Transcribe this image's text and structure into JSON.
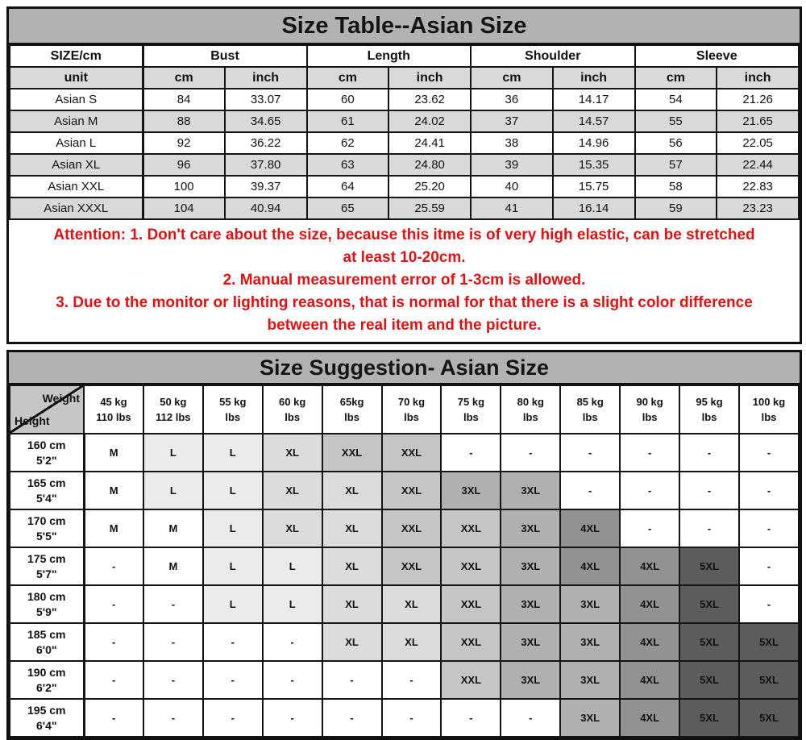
{
  "size_table": {
    "title": "Size Table--Asian Size",
    "first_col_header": "SIZE/cm",
    "unit_label": "unit",
    "groups": [
      "Bust",
      "Length",
      "Shoulder",
      "Sleeve"
    ],
    "unit_cells": [
      "cm",
      "inch",
      "cm",
      "inch",
      "cm",
      "inch",
      "cm",
      "inch"
    ],
    "rows": [
      {
        "size": "Asian S",
        "values": [
          "84",
          "33.07",
          "60",
          "23.62",
          "36",
          "14.17",
          "54",
          "21.26"
        ]
      },
      {
        "size": "Asian M",
        "values": [
          "88",
          "34.65",
          "61",
          "24.02",
          "37",
          "14.57",
          "55",
          "21.65"
        ]
      },
      {
        "size": "Asian L",
        "values": [
          "92",
          "36.22",
          "62",
          "24.41",
          "38",
          "14.96",
          "56",
          "22.05"
        ]
      },
      {
        "size": "Asian XL",
        "values": [
          "96",
          "37.80",
          "63",
          "24.80",
          "39",
          "15.35",
          "57",
          "22.44"
        ]
      },
      {
        "size": "Asian XXL",
        "values": [
          "100",
          "39.37",
          "64",
          "25.20",
          "40",
          "15.75",
          "58",
          "22.83"
        ]
      },
      {
        "size": "Asian XXXL",
        "values": [
          "104",
          "40.94",
          "65",
          "25.59",
          "41",
          "16.14",
          "59",
          "23.23"
        ]
      }
    ]
  },
  "attention": {
    "text_color": "#e01111",
    "lines": [
      "Attention:  1. Don't care about the size, because this itme is of very high elastic, can be stretched",
      "at least 10-20cm.",
      "2. Manual measurement error of 1-3cm is allowed.",
      "3. Due to the monitor or lighting reasons, that is normal for that there is a slight color difference",
      "between the real item and the picture."
    ]
  },
  "suggestion_table": {
    "title": "Size Suggestion- Asian Size",
    "corner_top": "Weight",
    "corner_bottom": "Height",
    "weights": [
      {
        "kg": "45 kg",
        "lbs": "110 lbs"
      },
      {
        "kg": "50 kg",
        "lbs": "112 lbs"
      },
      {
        "kg": "55 kg",
        "lbs": "lbs"
      },
      {
        "kg": "60 kg",
        "lbs": "lbs"
      },
      {
        "kg": "65kg",
        "lbs": "lbs"
      },
      {
        "kg": "70 kg",
        "lbs": "lbs"
      },
      {
        "kg": "75 kg",
        "lbs": "lbs"
      },
      {
        "kg": "80 kg",
        "lbs": "lbs"
      },
      {
        "kg": "85 kg",
        "lbs": "lbs"
      },
      {
        "kg": "90 kg",
        "lbs": "lbs"
      },
      {
        "kg": "95 kg",
        "lbs": "lbs"
      },
      {
        "kg": "100 kg",
        "lbs": "lbs"
      }
    ],
    "rows": [
      {
        "cm": "160 cm",
        "ft": "5'2\"",
        "cells": [
          "M",
          "L",
          "L",
          "XL",
          "XXL",
          "XXL",
          "-",
          "-",
          "-",
          "-",
          "-",
          "-"
        ]
      },
      {
        "cm": "165 cm",
        "ft": "5'4\"",
        "cells": [
          "M",
          "L",
          "L",
          "XL",
          "XL",
          "XXL",
          "3XL",
          "3XL",
          "-",
          "-",
          "-",
          "-"
        ]
      },
      {
        "cm": "170 cm",
        "ft": "5'5\"",
        "cells": [
          "M",
          "M",
          "L",
          "XL",
          "XL",
          "XXL",
          "XXL",
          "3XL",
          "4XL",
          "-",
          "-",
          "-"
        ]
      },
      {
        "cm": "175 cm",
        "ft": "5'7\"",
        "cells": [
          "-",
          "M",
          "L",
          "L",
          "XL",
          "XXL",
          "XXL",
          "3XL",
          "4XL",
          "4XL",
          "5XL",
          "-"
        ]
      },
      {
        "cm": "180 cm",
        "ft": "5'9\"",
        "cells": [
          "-",
          "-",
          "L",
          "L",
          "XL",
          "XL",
          "XXL",
          "3XL",
          "3XL",
          "4XL",
          "5XL",
          "-"
        ]
      },
      {
        "cm": "185 cm",
        "ft": "6'0\"",
        "cells": [
          "-",
          "-",
          "-",
          "-",
          "XL",
          "XL",
          "XXL",
          "3XL",
          "3XL",
          "4XL",
          "5XL",
          "5XL"
        ]
      },
      {
        "cm": "190 cm",
        "ft": "6'2\"",
        "cells": [
          "-",
          "-",
          "-",
          "-",
          "-",
          "-",
          "XXL",
          "3XL",
          "3XL",
          "4XL",
          "5XL",
          "5XL"
        ]
      },
      {
        "cm": "195 cm",
        "ft": "6'4\"",
        "cells": [
          "-",
          "-",
          "-",
          "-",
          "-",
          "-",
          "-",
          "-",
          "3XL",
          "4XL",
          "5XL",
          "5XL"
        ]
      }
    ],
    "shade_map": {
      "M": "#ffffff",
      "L": "#ebebeb",
      "XL": "#dcdcdc",
      "XXL": "#c5c5c5",
      "3XL": "#b0b0b0",
      "4XL": "#929292",
      "5XL": "#5c5c5c",
      "-": "#ffffff"
    }
  },
  "colors": {
    "title_bar_bg": "#b2b2b2",
    "alt_row_bg": "#d9d9d9",
    "border": "#141414",
    "attention_red": "#e01111"
  }
}
